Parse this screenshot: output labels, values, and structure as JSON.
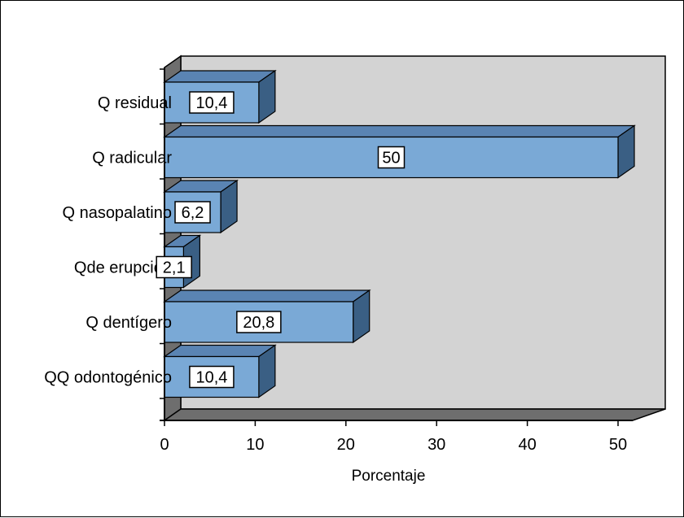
{
  "chart_data": {
    "type": "bar",
    "orientation": "horizontal",
    "three_d": true,
    "categories": [
      "QQ odontogénico",
      "Q dentígero",
      "Qde erupción",
      "Q nasopalatino",
      "Q radicular",
      "Q residual"
    ],
    "values": [
      10.4,
      20.8,
      2.1,
      6.2,
      50,
      10.4
    ],
    "data_labels": [
      "10,4",
      "20,8",
      "2,1",
      "6,2",
      "50",
      "10,4"
    ],
    "xlabel": "Porcentaje",
    "ylabel": "",
    "xlim": [
      0,
      50
    ],
    "xticks": [
      0,
      10,
      20,
      30,
      40,
      50
    ],
    "grid": false,
    "legend": "none",
    "colors": {
      "bar_front": "#7aa9d6",
      "bar_top": "#5a84b3",
      "bar_side": "#3a5f84",
      "plot_back_wall": "#d3d3d3",
      "plot_side_wall": "#6e6e6e",
      "label_box": "#ffffff"
    }
  }
}
